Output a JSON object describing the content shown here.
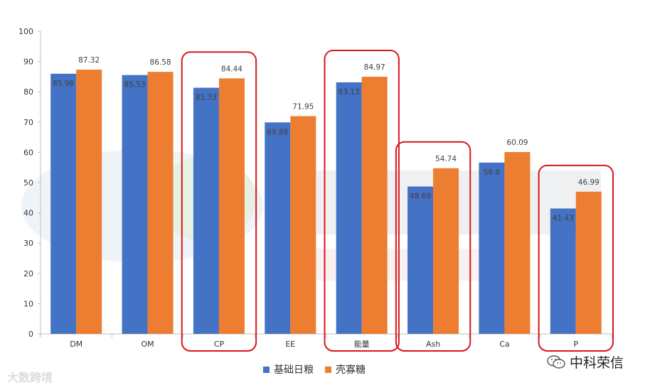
{
  "chart_data": {
    "type": "bar",
    "categories": [
      "DM",
      "OM",
      "CP",
      "EE",
      "能量",
      "Ash",
      "Ca",
      "P"
    ],
    "series": [
      {
        "name": "基础日粮",
        "values": [
          85.96,
          85.53,
          81.33,
          69.88,
          83.13,
          48.69,
          56.6,
          41.43
        ],
        "color": "#4472c4"
      },
      {
        "name": "壳寡糖",
        "values": [
          87.32,
          86.58,
          84.44,
          71.95,
          84.97,
          54.74,
          60.09,
          46.99
        ],
        "color": "#ed7d31"
      }
    ],
    "ylim": [
      0,
      100
    ],
    "yticks": [
      0,
      10,
      20,
      30,
      40,
      50,
      60,
      70,
      80,
      90,
      100
    ],
    "highlighted_categories": [
      "CP",
      "能量",
      "Ash",
      "P"
    ],
    "highlight_color": "#d9161d",
    "legend_position": "bottom",
    "grid": false
  },
  "watermark": {
    "left_text": "大数跨境",
    "right_text": "中科荣信",
    "right_icon": "wechat-icon"
  }
}
